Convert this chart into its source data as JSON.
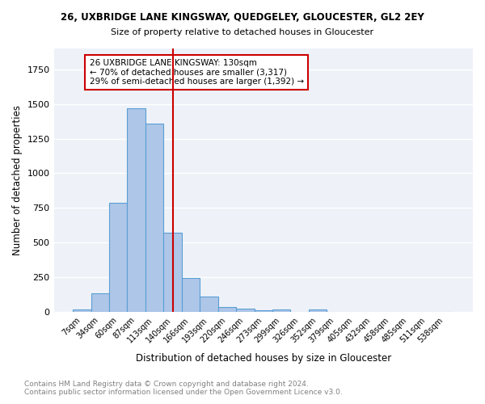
{
  "title": "26, UXBRIDGE LANE KINGSWAY, QUEDGELEY, GLOUCESTER, GL2 2EY",
  "subtitle": "Size of property relative to detached houses in Gloucester",
  "xlabel": "Distribution of detached houses by size in Gloucester",
  "ylabel": "Number of detached properties",
  "bar_color": "#aec6e8",
  "bar_edge_color": "#5a9fd4",
  "bg_color": "#eef2f8",
  "grid_color": "white",
  "categories": [
    "7sqm",
    "34sqm",
    "60sqm",
    "87sqm",
    "113sqm",
    "140sqm",
    "166sqm",
    "193sqm",
    "220sqm",
    "246sqm",
    "273sqm",
    "299sqm",
    "326sqm",
    "352sqm",
    "379sqm",
    "405sqm",
    "432sqm",
    "458sqm",
    "485sqm",
    "511sqm",
    "538sqm"
  ],
  "values": [
    18,
    135,
    785,
    1470,
    1360,
    570,
    248,
    113,
    35,
    25,
    15,
    17,
    0,
    20,
    0,
    0,
    0,
    0,
    0,
    0,
    0
  ],
  "vline_x": 5,
  "vline_color": "#cc0000",
  "annotation_lines": [
    "26 UXBRIDGE LANE KINGSWAY: 130sqm",
    "← 70% of detached houses are smaller (3,317)",
    "29% of semi-detached houses are larger (1,392) →"
  ],
  "ylim": [
    0,
    1900
  ],
  "footer_line1": "Contains HM Land Registry data © Crown copyright and database right 2024.",
  "footer_line2": "Contains public sector information licensed under the Open Government Licence v3.0."
}
